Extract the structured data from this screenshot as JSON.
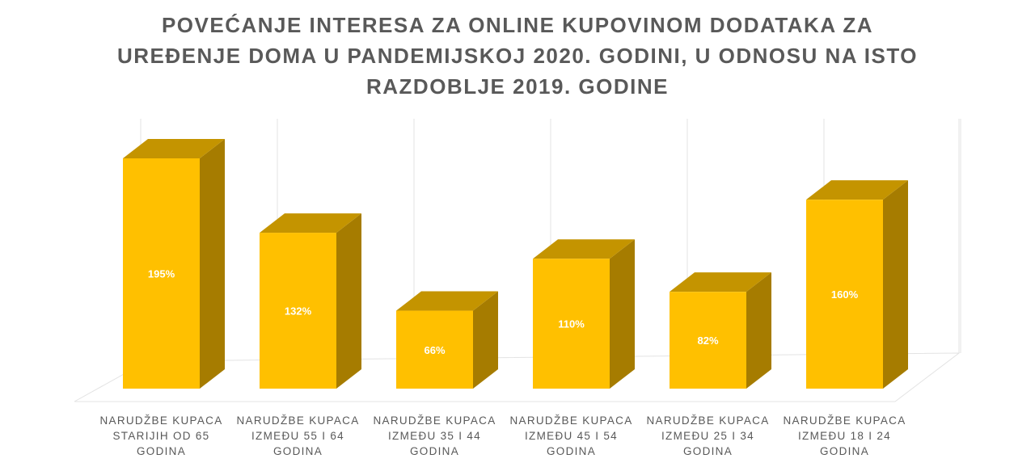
{
  "chart_data": {
    "type": "bar",
    "title": [
      "POVEĆANJE INTERESA ZA ONLINE KUPOVINOM DODATAKA ZA",
      "UREĐENJE DOMA U PANDEMIJSKOJ 2020. GODINI, U ODNOSU NA ISTO",
      "RAZDOBLJE 2019. GODINE"
    ],
    "categories": [
      [
        "NARUDŽBE KUPACA",
        "STARIJIH OD 65",
        "GODINA"
      ],
      [
        "NARUDŽBE KUPACA",
        "IZMEĐU 55 I 64",
        "GODINA"
      ],
      [
        "NARUDŽBE KUPACA",
        "IZMEĐU 35 I 44",
        "GODINA"
      ],
      [
        "NARUDŽBE KUPACA",
        "IZMEĐU 45 I 54",
        "GODINA"
      ],
      [
        "NARUDŽBE KUPACA",
        "IZMEĐU 25 I 34",
        "GODINA"
      ],
      [
        "NARUDŽBE KUPACA",
        "IZMEĐU 18 I 24",
        "GODINA"
      ]
    ],
    "values": [
      195,
      132,
      66,
      110,
      82,
      160
    ],
    "value_labels": [
      "195%",
      "132%",
      "66%",
      "110%",
      "82%",
      "160%"
    ],
    "ylim": [
      0,
      195
    ],
    "style": "3d-column",
    "grid": true,
    "legend": "none",
    "colors": {
      "bar_front": "#FFC000",
      "bar_top": "#C49400",
      "bar_side": "#A67C00",
      "grid": "#E3E3E3",
      "label_text": "#FFFFFF"
    }
  }
}
